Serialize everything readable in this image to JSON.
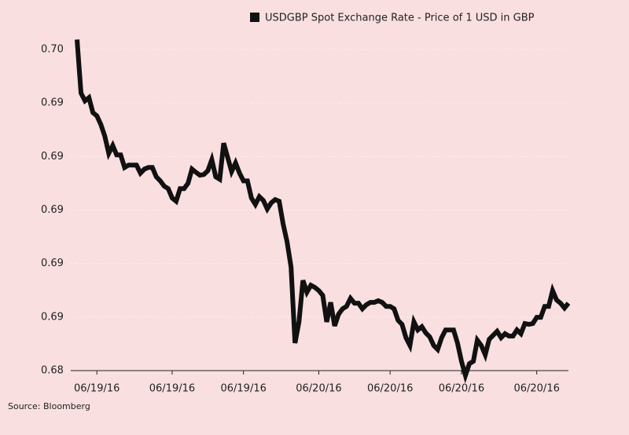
{
  "chart_data": {
    "type": "line",
    "legend_label": "USDGBP Spot Exchange Rate - Price of 1 USD in GBP",
    "source": "Source: Bloomberg",
    "xlim": [
      0,
      124
    ],
    "xticks": [
      {
        "value": 5,
        "label": "06/19/16"
      },
      {
        "value": 24,
        "label": "06/19/16"
      },
      {
        "value": 42,
        "label": "06/19/16"
      },
      {
        "value": 61,
        "label": "06/20/16"
      },
      {
        "value": 79,
        "label": "06/20/16"
      },
      {
        "value": 97,
        "label": "06/20/16"
      },
      {
        "value": 116,
        "label": "06/20/16"
      }
    ],
    "ylim": [
      0.684,
      0.696
    ],
    "yticks": [
      {
        "value": 0.684,
        "label": "0.68"
      },
      {
        "value": 0.686,
        "label": "0.69"
      },
      {
        "value": 0.688,
        "label": "0.69"
      },
      {
        "value": 0.69,
        "label": "0.69"
      },
      {
        "value": 0.692,
        "label": "0.69"
      },
      {
        "value": 0.694,
        "label": "0.69"
      },
      {
        "value": 0.696,
        "label": "0.70"
      }
    ],
    "grid": true,
    "series": [
      {
        "name": "USDGBP Spot Exchange Rate - Price of 1 USD in GBP",
        "color": "#111111",
        "values": [
          0.69637,
          0.69437,
          0.69408,
          0.6942,
          0.69364,
          0.69352,
          0.6932,
          0.69276,
          0.69212,
          0.69241,
          0.69206,
          0.69206,
          0.69159,
          0.69168,
          0.69168,
          0.69168,
          0.69138,
          0.69153,
          0.69159,
          0.69159,
          0.69124,
          0.69109,
          0.69089,
          0.6908,
          0.69045,
          0.69033,
          0.6908,
          0.6908,
          0.691,
          0.69153,
          0.69141,
          0.6913,
          0.69133,
          0.69147,
          0.69188,
          0.69124,
          0.69115,
          0.6925,
          0.69197,
          0.69144,
          0.69176,
          0.69138,
          0.69109,
          0.69109,
          0.69045,
          0.69021,
          0.6905,
          0.69036,
          0.69004,
          0.69027,
          0.69039,
          0.69033,
          0.68948,
          0.68881,
          0.68787,
          0.68503,
          0.68582,
          0.68737,
          0.68693,
          0.68719,
          0.68711,
          0.68699,
          0.68681,
          0.68582,
          0.68655,
          0.68567,
          0.68611,
          0.68631,
          0.6864,
          0.6867,
          0.68652,
          0.68652,
          0.68631,
          0.68646,
          0.68655,
          0.68655,
          0.68661,
          0.68655,
          0.6864,
          0.6864,
          0.68631,
          0.68588,
          0.68573,
          0.68523,
          0.68494,
          0.68582,
          0.68552,
          0.68564,
          0.68541,
          0.68526,
          0.68494,
          0.68479,
          0.68523,
          0.68552,
          0.68552,
          0.68552,
          0.68503,
          0.68435,
          0.68382,
          0.68426,
          0.68435,
          0.68514,
          0.68494,
          0.68459,
          0.68517,
          0.68532,
          0.68547,
          0.68523,
          0.68538,
          0.68529,
          0.68529,
          0.68552,
          0.68538,
          0.68576,
          0.68573,
          0.68576,
          0.68599,
          0.68599,
          0.6864,
          0.6864,
          0.68699,
          0.68664,
          0.68652,
          0.68634,
          0.68652
        ]
      }
    ]
  }
}
